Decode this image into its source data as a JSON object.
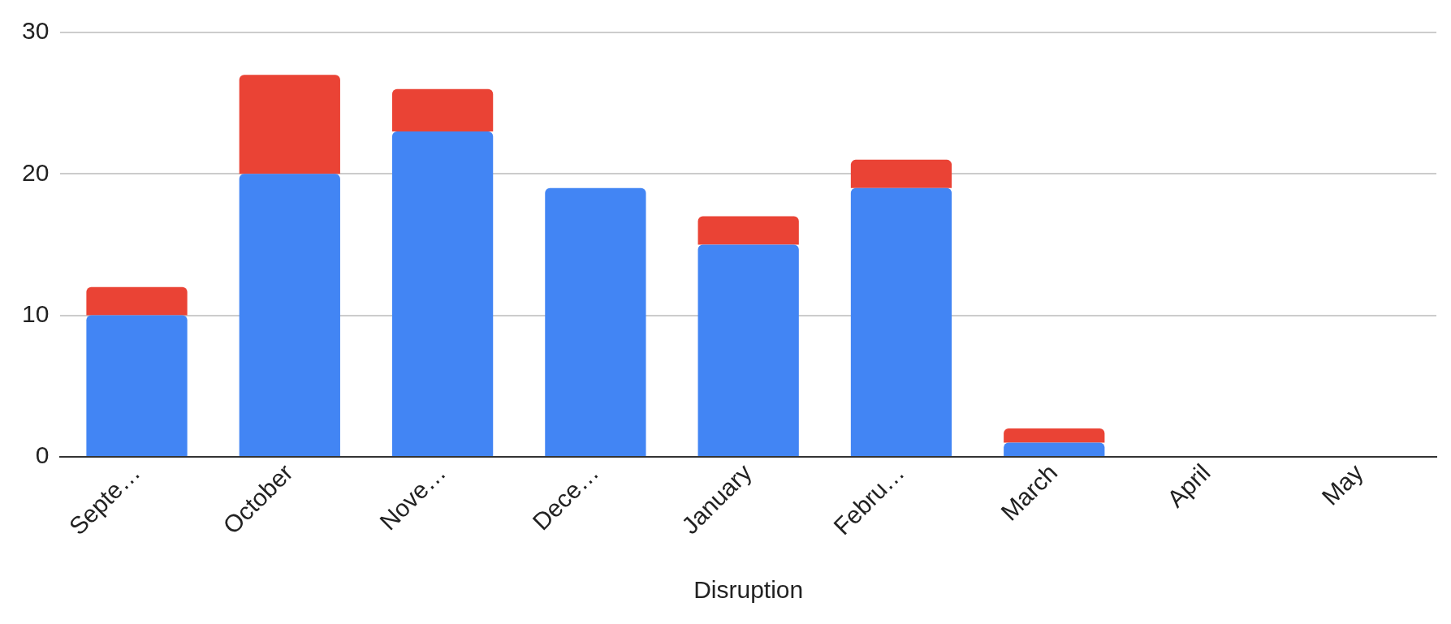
{
  "chart_data": {
    "type": "bar",
    "stacked": true,
    "xlabel": "Disruption",
    "categories": [
      "Septe…",
      "October",
      "Nove…",
      "Dece…",
      "January",
      "Febru…",
      "March",
      "April",
      "May"
    ],
    "series": [
      {
        "color": "#4285f4",
        "values": [
          10,
          20,
          23,
          19,
          15,
          19,
          1,
          0,
          0
        ]
      },
      {
        "color": "#ea4335",
        "values": [
          2,
          7,
          3,
          0,
          2,
          2,
          1,
          0,
          0
        ]
      }
    ],
    "ylim": [
      0,
      30
    ],
    "yticks": [
      0,
      10,
      20,
      30
    ],
    "grid": "y",
    "legend": false
  }
}
